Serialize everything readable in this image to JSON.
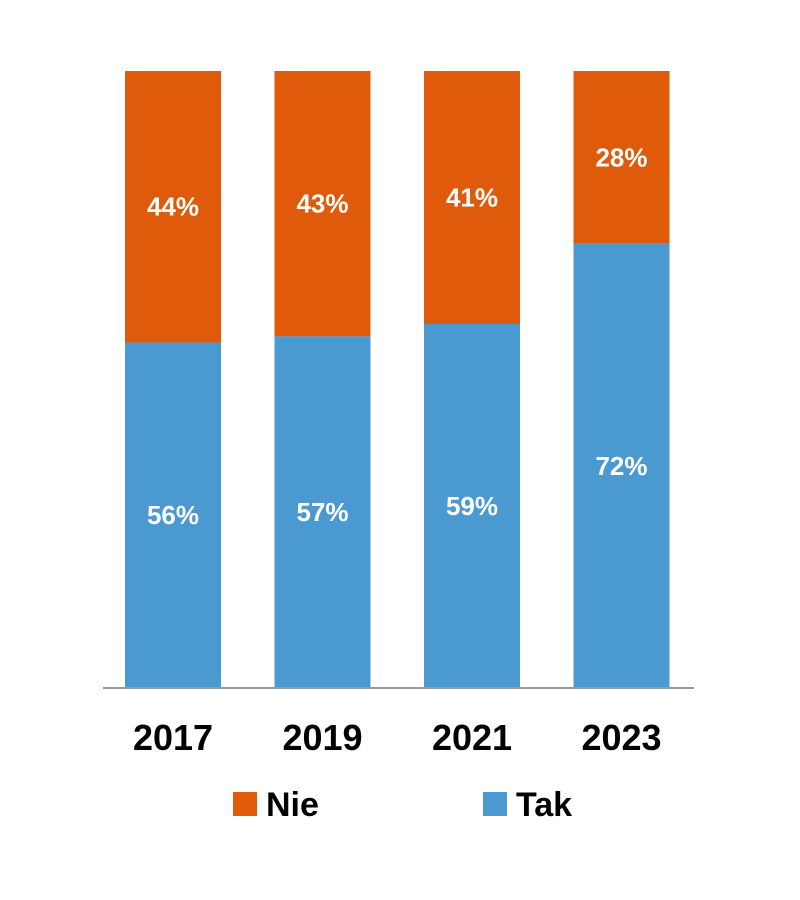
{
  "chart_data": {
    "type": "bar",
    "stacked": true,
    "percent": true,
    "categories": [
      "2017",
      "2019",
      "2021",
      "2023"
    ],
    "series": [
      {
        "name": "Tak",
        "values": [
          56,
          57,
          59,
          72
        ],
        "labels": [
          "56%",
          "57%",
          "59%",
          "72%"
        ],
        "color": "#4B99D1"
      },
      {
        "name": "Nie",
        "values": [
          44,
          43,
          41,
          28
        ],
        "labels": [
          "44%",
          "43%",
          "41%",
          "28%"
        ],
        "color": "#E05A0C"
      }
    ],
    "ylim": [
      0,
      100
    ],
    "grid": false,
    "legend": {
      "position": "bottom",
      "entries": [
        {
          "name": "Nie",
          "color": "#E05A0C"
        },
        {
          "name": "Tak",
          "color": "#4B99D1"
        }
      ]
    },
    "axis_color": "#9a9a9a"
  }
}
